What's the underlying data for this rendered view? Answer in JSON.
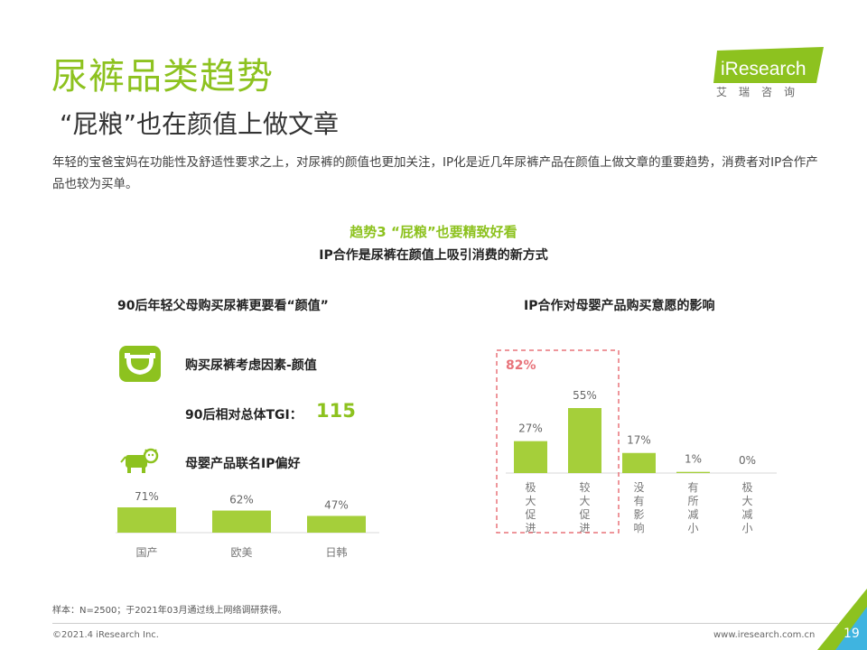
{
  "header": {
    "title": "尿裤品类趋势",
    "subtitle": "“屁粮”也在颜值上做文章",
    "intro": "年轻的宝爸宝妈在功能性及舒适性要求之上，对尿裤的颜值也更加关注，IP化是近几年尿裤产品在颜值上做文章的重要趋势，消费者对IP合作产品也较为买单。",
    "logo_text": "iResearch",
    "logo_sub": "艾瑞咨询"
  },
  "trend": {
    "title": "趋势3 “屁粮”也要精致好看",
    "subtitle": "IP合作是尿裤在颜值上吸引消费的新方式"
  },
  "left_panel": {
    "title": "90后年轻父母购买尿裤更要看“颜值”",
    "factor_label": "购买尿裤考虑因素-颜值",
    "tgi_label": "90后相对总体TGI：",
    "tgi_value": "115",
    "pref_label": "母婴产品联名IP偏好"
  },
  "right_panel": {
    "title": "IP合作对母婴产品购买意愿的影响"
  },
  "icons": {
    "diaper": "diaper-icon",
    "cow": "cow-icon"
  },
  "colors": {
    "accent": "#8dc21f",
    "highlight": "#e8737a",
    "bar": "#a5cf3a"
  },
  "chart_data": [
    {
      "type": "bar",
      "categories": [
        "国产",
        "欧美",
        "日韩"
      ],
      "values": [
        71,
        62,
        47
      ],
      "value_labels": [
        "71%",
        "62%",
        "47%"
      ],
      "ylim": [
        0,
        100
      ]
    },
    {
      "type": "bar",
      "categories": [
        "极大促进",
        "较大促进",
        "没有影响",
        "有所减小",
        "极大减小"
      ],
      "values": [
        27,
        55,
        17,
        1,
        0
      ],
      "value_labels": [
        "27%",
        "55%",
        "17%",
        "1%",
        "0%"
      ],
      "highlight": {
        "categories": [
          "极大促进",
          "较大促进"
        ],
        "label": "82%"
      },
      "ylim": [
        0,
        60
      ]
    }
  ],
  "footer": {
    "note": "样本：N=2500；于2021年03月通过线上网络调研获得。",
    "copyright": "©2021.4 iResearch Inc.",
    "website": "www.iresearch.com.cn",
    "page": "19"
  }
}
